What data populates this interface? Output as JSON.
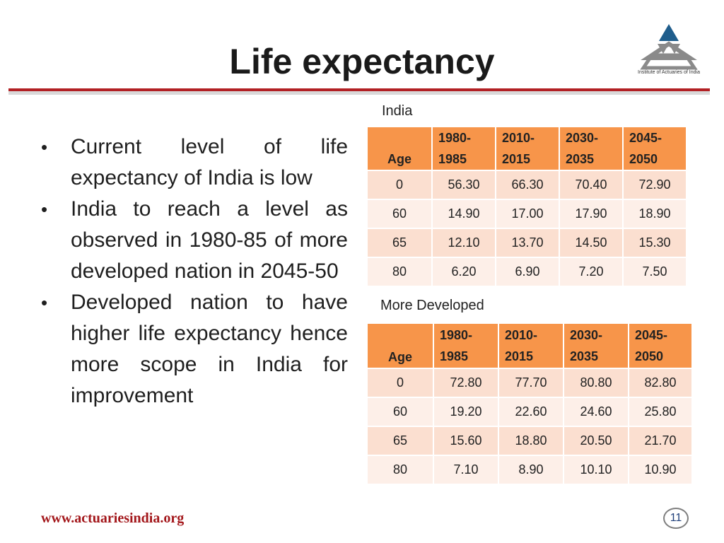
{
  "title": "Life expectancy",
  "logo": {
    "org_text": "Institute of Actuaries of India",
    "icon": "iai-triangle-logo",
    "color_dark": "#1f5d8c",
    "color_light": "#8a8a8a"
  },
  "bullets": [
    "Current level of life expectancy of India is low",
    "India to reach a level as observed in 1980-85 of more developed nation in 2045-50",
    "Developed nation to have higher life expectancy hence more scope in India for improvement"
  ],
  "tables": [
    {
      "caption": "India",
      "headers": [
        "Age",
        "1980-",
        "1985",
        "2010-",
        "2015",
        "2030-",
        "2035",
        "2045-",
        "2050"
      ],
      "rows": [
        [
          "0",
          "56.30",
          "66.30",
          "70.40",
          "72.90"
        ],
        [
          "60",
          "14.90",
          "17.00",
          "17.90",
          "18.90"
        ],
        [
          "65",
          "12.10",
          "13.70",
          "14.50",
          "15.30"
        ],
        [
          "80",
          "6.20",
          "6.90",
          "7.20",
          "7.50"
        ]
      ]
    },
    {
      "caption": "More Developed",
      "headers": [
        "Age",
        "1980-",
        "1985",
        "2010-",
        "2015",
        "2030-",
        "2035",
        "2045-",
        "2050"
      ],
      "rows": [
        [
          "0",
          "72.80",
          "77.70",
          "80.80",
          "82.80"
        ],
        [
          "60",
          "19.20",
          "22.60",
          "24.60",
          "25.80"
        ],
        [
          "65",
          "15.60",
          "18.80",
          "20.50",
          "21.70"
        ],
        [
          "80",
          "7.10",
          "8.90",
          "10.10",
          "10.90"
        ]
      ]
    }
  ],
  "footer": {
    "url": "www.actuariesindia.org",
    "page_number": "11"
  },
  "colors": {
    "accent_red": "#b22024",
    "header_orange": "#f7954a",
    "row_odd": "#fbdfd0",
    "row_even": "#fdefe8"
  }
}
